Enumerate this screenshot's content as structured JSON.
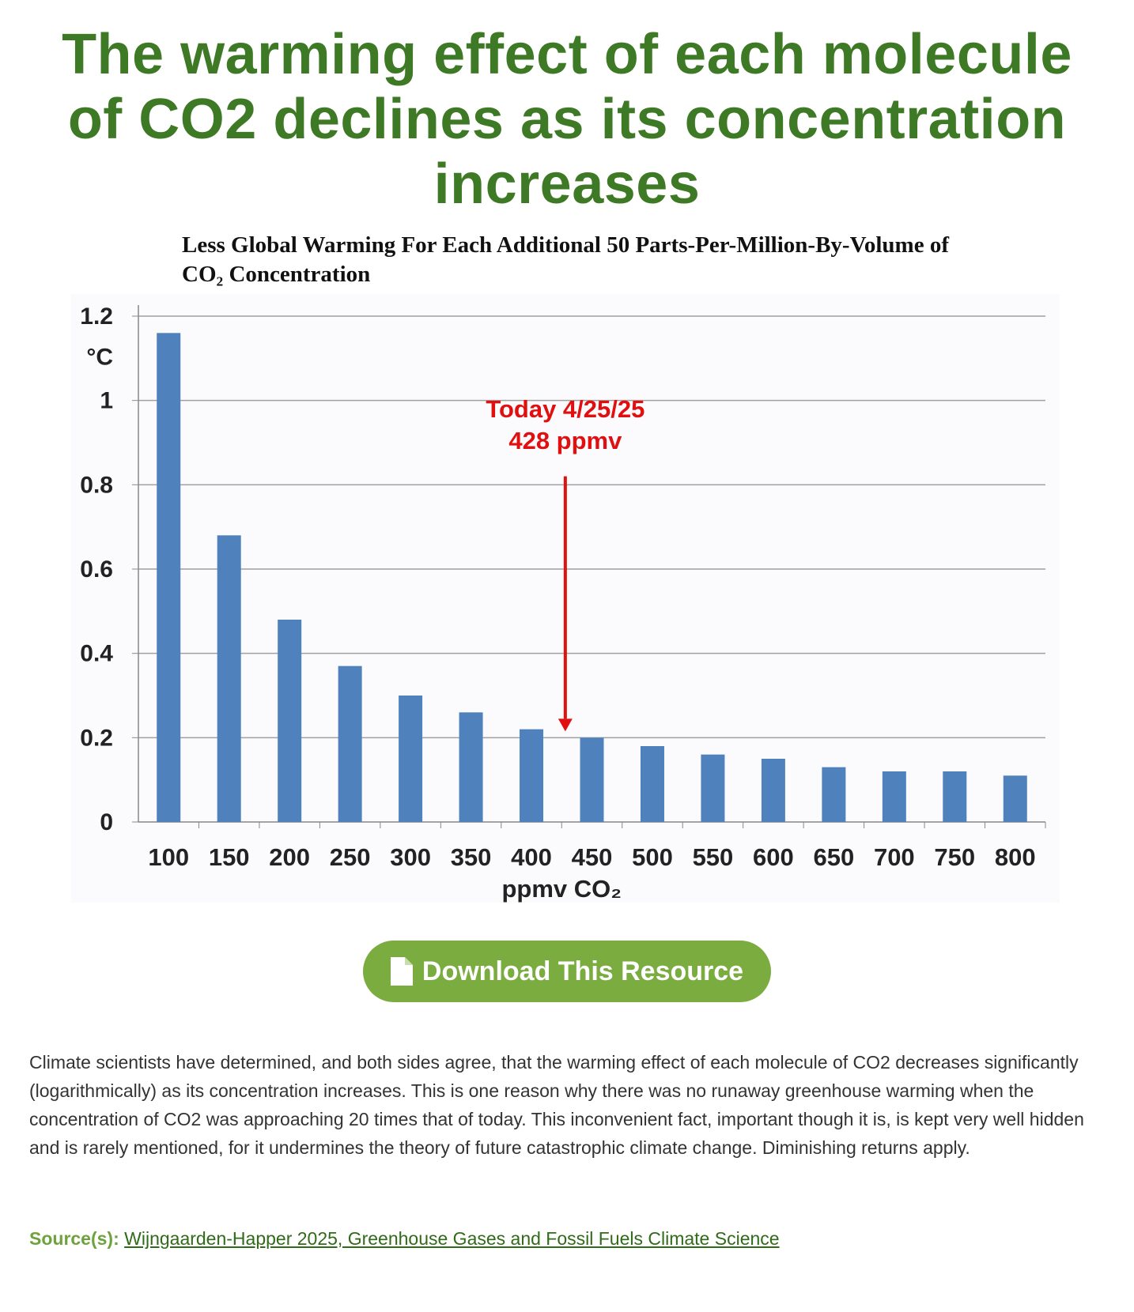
{
  "page": {
    "title": "The warming effect of each molecule of CO2 declines as its concentration increases",
    "download_label": "Download This Resource",
    "description": "Climate scientists have determined, and both sides agree, that the warming effect of each molecule of CO2 decreases significantly (logarithmically) as its concentration increases. This is one reason why there was no runaway greenhouse warming when the concentration of CO2 was approaching 20 times that of today. This inconvenient fact, important though it is, is kept very well hidden and is rarely mentioned, for it undermines the theory of future catastrophic climate change. Diminishing returns apply.",
    "source_label": "Source(s):",
    "source_link": "Wijngaarden-Happer 2025, Greenhouse Gases and Fossil Fuels Climate Science",
    "colors": {
      "title": "#3e7a25",
      "button": "#7aac3f",
      "bar": "#4f81bd",
      "annotation": "#e01010"
    }
  },
  "chart_data": {
    "type": "bar",
    "title": "Less Global Warming For Each Additional 50 Parts-Per-Million-By-Volume of CO₂ Concentration",
    "xlabel": "ppmv CO₂",
    "ylabel": "°C",
    "categories": [
      "100",
      "150",
      "200",
      "250",
      "300",
      "350",
      "400",
      "450",
      "500",
      "550",
      "600",
      "650",
      "700",
      "750",
      "800"
    ],
    "values": [
      1.16,
      0.68,
      0.48,
      0.37,
      0.3,
      0.26,
      0.22,
      0.2,
      0.18,
      0.16,
      0.15,
      0.13,
      0.12,
      0.12,
      0.11
    ],
    "ylim": [
      0,
      1.2
    ],
    "yticks": [
      "0",
      "0.2",
      "0.4",
      "0.6",
      "0.8",
      "1",
      "1.2"
    ],
    "grid": true,
    "annotation": {
      "line1": "Today 4/25/25",
      "line2": "428 ppmv",
      "x": 428
    }
  }
}
